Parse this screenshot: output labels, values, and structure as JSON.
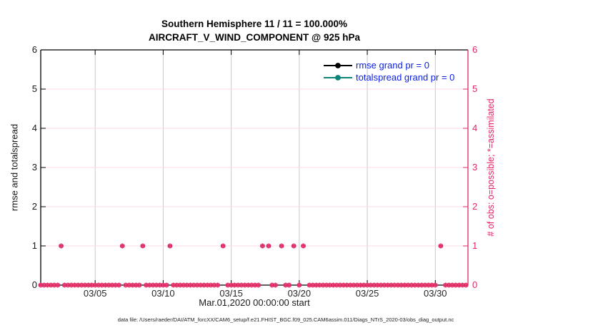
{
  "header": {
    "title_line1": "Southern Hemisphere 11 / 11 = 100.000%",
    "title_line2": "AIRCRAFT_V_WIND_COMPONENT @ 925 hPa"
  },
  "axes": {
    "ylabel_left": "rmse and totalspread",
    "ylabel_right": "# of obs: o=possible; *=assimilated",
    "xlabel": "Mar.01,2020 00:00:00 start"
  },
  "footer": {
    "datafile_text": "data file: /Users/raeder/DAI/ATM_forcXX/CAM6_setup/f.e21.FHIST_BGC.f09_025.CAM6assim.011/Diags_NTrS_2020-03/obs_diag_output.nc"
  },
  "legend": [
    {
      "label": "rmse grand pr = 0",
      "color": "#000000"
    },
    {
      "label": "totalspread grand pr = 0",
      "color": "#0c8577"
    }
  ],
  "colors": {
    "obs_accent": "#e02863",
    "grid_x": "#c9c9c9",
    "grid_y": "#fadbe6",
    "legend_text": "#0a1ee6",
    "axis_black": "#000000"
  },
  "chart_data": {
    "type": "scatter",
    "title": "Southern Hemisphere 11 / 11 = 100.000%",
    "subtitle": "AIRCRAFT_V_WIND_COMPONENT @ 925 hPa",
    "xlabel": "Mar.01,2020 00:00:00 start",
    "ylabel_left": "rmse and totalspread",
    "ylabel_right": "# of obs: o=possible; *=assimilated",
    "x_axis": {
      "start": "Mar.01,2020 00:00:00",
      "tick_labels": [
        "03/05",
        "03/10",
        "03/15",
        "03/20",
        "03/25",
        "03/30"
      ],
      "tick_days": [
        4,
        9,
        14,
        19,
        24,
        29
      ],
      "range_days": [
        0,
        31.4
      ]
    },
    "y_axis": {
      "ticks": [
        0,
        1,
        2,
        3,
        4,
        5,
        6
      ],
      "range": [
        0,
        6
      ]
    },
    "series": [
      {
        "name": "rmse grand pr = 0",
        "color": "#000000",
        "points": []
      },
      {
        "name": "totalspread grand pr = 0",
        "color": "#0c8577",
        "points": []
      },
      {
        "name": "obs count (o=possible, *=assimilated)",
        "color": "#e02863",
        "zero_count_bins": {
          "start_day": 0,
          "end_day": 31.25,
          "step_day": 0.25
        },
        "one_count_days": [
          1.5,
          6.0,
          7.5,
          9.5,
          13.4,
          16.3,
          16.75,
          17.7,
          18.6,
          19.3,
          29.4
        ]
      }
    ],
    "grid": {
      "vertical": true,
      "horizontal": true
    },
    "legend_position": "top-right-inside",
    "annotations": {
      "possible_obs": 11,
      "assimilated_obs": 11,
      "assimilated_pct": "100.000%"
    }
  }
}
